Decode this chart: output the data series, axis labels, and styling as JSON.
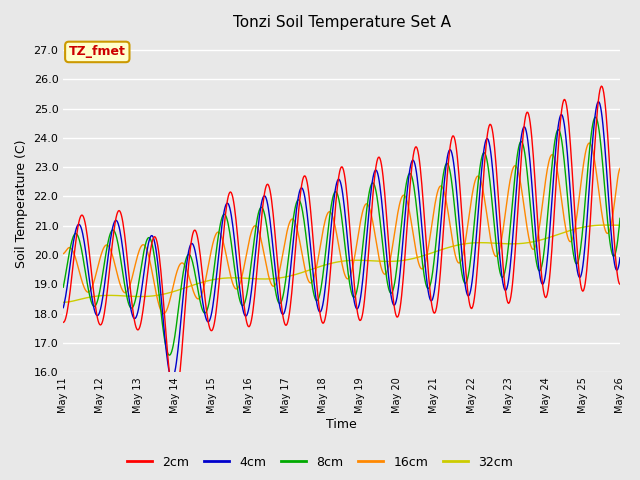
{
  "title": "Tonzi Soil Temperature Set A",
  "xlabel": "Time",
  "ylabel": "Soil Temperature (C)",
  "ylim": [
    16.0,
    27.5
  ],
  "yticks": [
    16.0,
    17.0,
    18.0,
    19.0,
    20.0,
    21.0,
    22.0,
    23.0,
    24.0,
    25.0,
    26.0,
    27.0
  ],
  "bg_color": "#e8e8e8",
  "plot_bg_color": "#e8e8e8",
  "grid_color": "#ffffff",
  "annotation_text": "TZ_fmet",
  "annotation_color": "#cc0000",
  "annotation_bg": "#ffffcc",
  "annotation_border": "#cc9900",
  "series_colors": [
    "#ff0000",
    "#0000cc",
    "#00aa00",
    "#ff8800",
    "#cccc00"
  ],
  "series_labels": [
    "2cm",
    "4cm",
    "8cm",
    "16cm",
    "32cm"
  ],
  "x_tick_labels": [
    "May 11",
    "May 12",
    "May 13",
    "May 14",
    "May 15",
    "May 16",
    "May 17",
    "May 18",
    "May 19",
    "May 20",
    "May 21",
    "May 22",
    "May 23",
    "May 24",
    "May 25",
    "May 26"
  ],
  "n_days": 15
}
